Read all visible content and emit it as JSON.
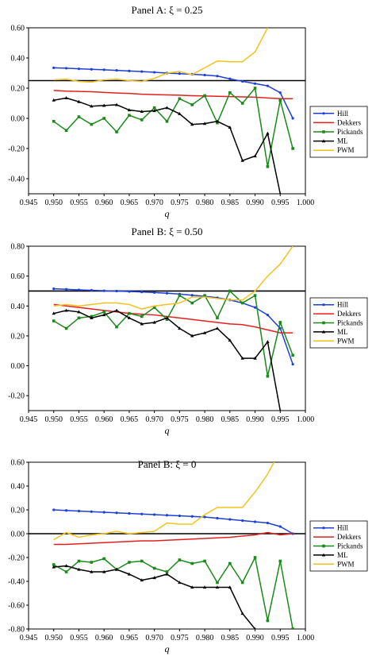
{
  "colors": {
    "Hill": "#1f3fd6",
    "Dekkers": "#e32020",
    "Pickands": "#1a8a1a",
    "ML": "#000000",
    "PWM": "#f3c21c",
    "reference": "#000000"
  },
  "chart_data": [
    {
      "type": "line",
      "title": "Panel A: ξ = 0.25",
      "xlabel": "q",
      "ylabel": "",
      "xlim": [
        0.945,
        1.0
      ],
      "ylim": [
        -0.5,
        0.6
      ],
      "xticks": [
        "0.945",
        "0.950",
        "0.955",
        "0.960",
        "0.965",
        "0.970",
        "0.975",
        "0.980",
        "0.985",
        "0.990",
        "0.995",
        "1.000"
      ],
      "yticks": [
        "0.60",
        "0.40",
        "0.20",
        "0.00",
        "-0.20",
        "-0.40"
      ],
      "ytick_values": [
        0.6,
        0.4,
        0.2,
        0,
        -0.2,
        -0.4
      ],
      "reference_line": 0.25,
      "legend_position": "right",
      "x": [
        0.95,
        0.9525,
        0.955,
        0.9575,
        0.96,
        0.9625,
        0.965,
        0.9675,
        0.97,
        0.9725,
        0.975,
        0.9775,
        0.98,
        0.9825,
        0.985,
        0.9875,
        0.99,
        0.9925,
        0.995,
        0.9975
      ],
      "series": [
        {
          "name": "Hill",
          "values": [
            0.335,
            0.332,
            0.328,
            0.325,
            0.322,
            0.318,
            0.314,
            0.31,
            0.305,
            0.3,
            0.296,
            0.292,
            0.287,
            0.28,
            0.262,
            0.245,
            0.23,
            0.215,
            0.17,
            0.0
          ]
        },
        {
          "name": "Dekkers",
          "values": [
            0.185,
            0.18,
            0.178,
            0.176,
            0.172,
            0.168,
            0.165,
            0.16,
            0.157,
            0.155,
            0.153,
            0.15,
            0.148,
            0.146,
            0.144,
            0.142,
            0.14,
            0.135,
            0.13,
            0.13
          ]
        },
        {
          "name": "Pickands",
          "values": [
            -0.02,
            -0.08,
            0.01,
            -0.04,
            0.0,
            -0.09,
            0.02,
            -0.01,
            0.07,
            -0.02,
            0.13,
            0.09,
            0.15,
            -0.03,
            0.17,
            0.1,
            0.2,
            -0.32,
            0.12,
            -0.2
          ]
        },
        {
          "name": "ML",
          "values": [
            0.12,
            0.135,
            0.11,
            0.08,
            0.085,
            0.09,
            0.055,
            0.045,
            0.05,
            0.07,
            0.03,
            -0.04,
            -0.035,
            -0.02,
            -0.06,
            -0.28,
            -0.25,
            -0.1,
            -0.5,
            null
          ]
        },
        {
          "name": "PWM",
          "values": [
            0.255,
            0.26,
            0.245,
            0.24,
            0.255,
            0.26,
            0.25,
            0.245,
            0.265,
            0.3,
            0.31,
            0.29,
            0.335,
            0.38,
            0.375,
            0.375,
            0.44,
            0.6,
            null,
            null
          ]
        }
      ]
    },
    {
      "type": "line",
      "title": "Panel B: ξ = 0.50",
      "xlabel": "q",
      "ylabel": "",
      "xlim": [
        0.945,
        1.0
      ],
      "ylim": [
        -0.3,
        0.8
      ],
      "xticks": [
        "0.945",
        "0.950",
        "0.955",
        "0.960",
        "0.965",
        "0.970",
        "0.975",
        "0.980",
        "0.985",
        "0.990",
        "0.995",
        "1.000"
      ],
      "yticks": [
        "0.80",
        "0.60",
        "0.40",
        "0.20",
        "0.00",
        "-0.20"
      ],
      "ytick_values": [
        0.8,
        0.6,
        0.4,
        0.2,
        0,
        -0.2
      ],
      "reference_line": 0.5,
      "legend_position": "right",
      "x": [
        0.95,
        0.9525,
        0.955,
        0.9575,
        0.96,
        0.9625,
        0.965,
        0.9675,
        0.97,
        0.9725,
        0.975,
        0.9775,
        0.98,
        0.9825,
        0.985,
        0.9875,
        0.99,
        0.9925,
        0.995,
        0.9975
      ],
      "series": [
        {
          "name": "Hill",
          "values": [
            0.515,
            0.512,
            0.508,
            0.505,
            0.502,
            0.5,
            0.497,
            0.494,
            0.49,
            0.485,
            0.48,
            0.472,
            0.465,
            0.455,
            0.44,
            0.42,
            0.39,
            0.34,
            0.25,
            0.01
          ]
        },
        {
          "name": "Dekkers",
          "values": [
            0.41,
            0.4,
            0.39,
            0.38,
            0.37,
            0.36,
            0.35,
            0.345,
            0.34,
            0.33,
            0.32,
            0.31,
            0.3,
            0.29,
            0.28,
            0.275,
            0.26,
            0.24,
            0.22,
            0.22
          ]
        },
        {
          "name": "Pickands",
          "values": [
            0.3,
            0.25,
            0.32,
            0.33,
            0.36,
            0.26,
            0.35,
            0.33,
            0.39,
            0.31,
            0.47,
            0.42,
            0.47,
            0.32,
            0.5,
            0.42,
            0.47,
            -0.07,
            0.29,
            0.07
          ]
        },
        {
          "name": "ML",
          "values": [
            0.35,
            0.37,
            0.36,
            0.32,
            0.34,
            0.37,
            0.32,
            0.28,
            0.29,
            0.32,
            0.25,
            0.2,
            0.22,
            0.25,
            0.17,
            0.05,
            0.05,
            0.16,
            -0.3,
            null
          ]
        },
        {
          "name": "PWM",
          "values": [
            0.4,
            0.41,
            0.4,
            0.41,
            0.42,
            0.42,
            0.41,
            0.38,
            0.4,
            0.41,
            0.42,
            0.46,
            0.46,
            0.45,
            0.44,
            0.44,
            0.5,
            0.6,
            0.68,
            0.8
          ]
        }
      ]
    },
    {
      "type": "line",
      "title": "Panel B: ξ = 0",
      "xlabel": "q",
      "ylabel": "",
      "xlim": [
        0.945,
        1.0
      ],
      "ylim": [
        -0.8,
        0.6
      ],
      "xticks": [
        "0.945",
        "0.950",
        "0.955",
        "0.960",
        "0.965",
        "0.970",
        "0.975",
        "0.980",
        "0.985",
        "0.990",
        "0.995",
        "1.000"
      ],
      "yticks": [
        "0.60",
        "0.40",
        "0.20",
        "0.00",
        "-0.20",
        "-0.40",
        "-0.60",
        "-0.80"
      ],
      "ytick_values": [
        0.6,
        0.4,
        0.2,
        0,
        -0.2,
        -0.4,
        -0.6,
        -0.8
      ],
      "reference_line": 0.0,
      "legend_position": "right",
      "x": [
        0.95,
        0.9525,
        0.955,
        0.9575,
        0.96,
        0.9625,
        0.965,
        0.9675,
        0.97,
        0.9725,
        0.975,
        0.9775,
        0.98,
        0.9825,
        0.985,
        0.9875,
        0.99,
        0.9925,
        0.995,
        0.9975
      ],
      "series": [
        {
          "name": "Hill",
          "values": [
            0.2,
            0.195,
            0.19,
            0.185,
            0.18,
            0.175,
            0.17,
            0.165,
            0.16,
            0.155,
            0.15,
            0.145,
            0.14,
            0.13,
            0.12,
            0.11,
            0.1,
            0.09,
            0.06,
            0.0
          ]
        },
        {
          "name": "Dekkers",
          "values": [
            -0.09,
            -0.09,
            -0.085,
            -0.08,
            -0.075,
            -0.07,
            -0.065,
            -0.06,
            -0.06,
            -0.055,
            -0.05,
            -0.045,
            -0.04,
            -0.035,
            -0.03,
            -0.02,
            -0.01,
            0.01,
            -0.01,
            0.0
          ]
        },
        {
          "name": "Pickands",
          "values": [
            -0.26,
            -0.32,
            -0.23,
            -0.24,
            -0.21,
            -0.3,
            -0.24,
            -0.23,
            -0.29,
            -0.32,
            -0.22,
            -0.25,
            -0.23,
            -0.41,
            -0.25,
            -0.41,
            -0.2,
            -0.73,
            -0.23,
            -0.8
          ]
        },
        {
          "name": "ML",
          "values": [
            -0.28,
            -0.27,
            -0.3,
            -0.32,
            -0.32,
            -0.3,
            -0.34,
            -0.39,
            -0.37,
            -0.34,
            -0.41,
            -0.45,
            -0.45,
            -0.45,
            -0.45,
            -0.67,
            -0.8,
            null,
            null,
            null
          ]
        },
        {
          "name": "PWM",
          "values": [
            -0.05,
            0.01,
            -0.03,
            -0.01,
            0.0,
            0.02,
            0.0,
            0.01,
            0.02,
            0.09,
            0.08,
            0.08,
            0.16,
            0.22,
            0.22,
            0.22,
            0.35,
            0.5,
            0.7,
            0.9
          ]
        }
      ]
    }
  ]
}
